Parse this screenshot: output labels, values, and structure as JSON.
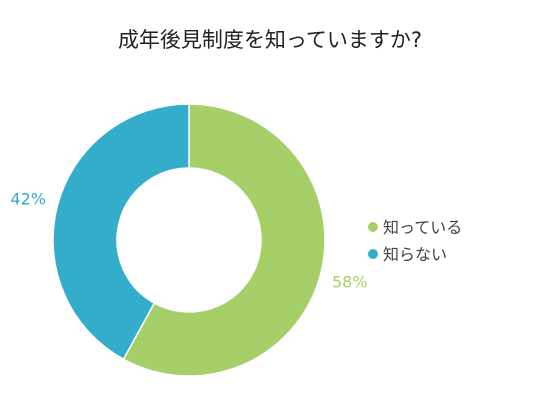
{
  "chart_data": {
    "type": "pie",
    "title": "成年後見制度を知っていますか?",
    "categories": [
      "知っている",
      "知らない"
    ],
    "values": [
      58,
      42
    ],
    "value_labels": [
      "58%",
      "42%"
    ],
    "colors": [
      "#a6cf6a",
      "#33adc9"
    ],
    "donut": true,
    "legend_position": "right"
  }
}
